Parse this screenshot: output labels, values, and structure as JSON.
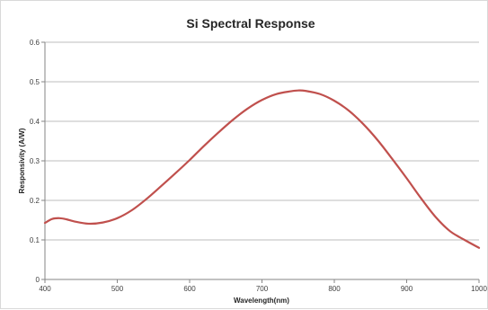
{
  "chart_data": {
    "type": "line",
    "title": "Si Spectral Response",
    "xlabel": "Wavelength(nm)",
    "ylabel": "Responsivity (A/W)",
    "xlim": [
      400,
      1000
    ],
    "ylim": [
      0,
      0.6
    ],
    "xticks": [
      400,
      500,
      600,
      700,
      800,
      900,
      1000
    ],
    "yticks": [
      0,
      0.1,
      0.2,
      0.3,
      0.4,
      0.5,
      0.6
    ],
    "grid": "horizontal",
    "legend": "none",
    "series": [
      {
        "color": "#c0504d",
        "x": [
          400,
          410,
          420,
          430,
          440,
          460,
          480,
          500,
          520,
          540,
          560,
          580,
          600,
          620,
          640,
          660,
          680,
          700,
          720,
          740,
          750,
          760,
          780,
          800,
          820,
          840,
          860,
          880,
          900,
          920,
          940,
          960,
          980,
          1000
        ],
        "y": [
          0.143,
          0.153,
          0.155,
          0.152,
          0.147,
          0.141,
          0.144,
          0.155,
          0.175,
          0.203,
          0.235,
          0.268,
          0.302,
          0.338,
          0.372,
          0.404,
          0.432,
          0.454,
          0.469,
          0.476,
          0.478,
          0.477,
          0.469,
          0.452,
          0.427,
          0.393,
          0.352,
          0.305,
          0.256,
          0.205,
          0.158,
          0.122,
          0.1,
          0.08
        ]
      }
    ]
  }
}
